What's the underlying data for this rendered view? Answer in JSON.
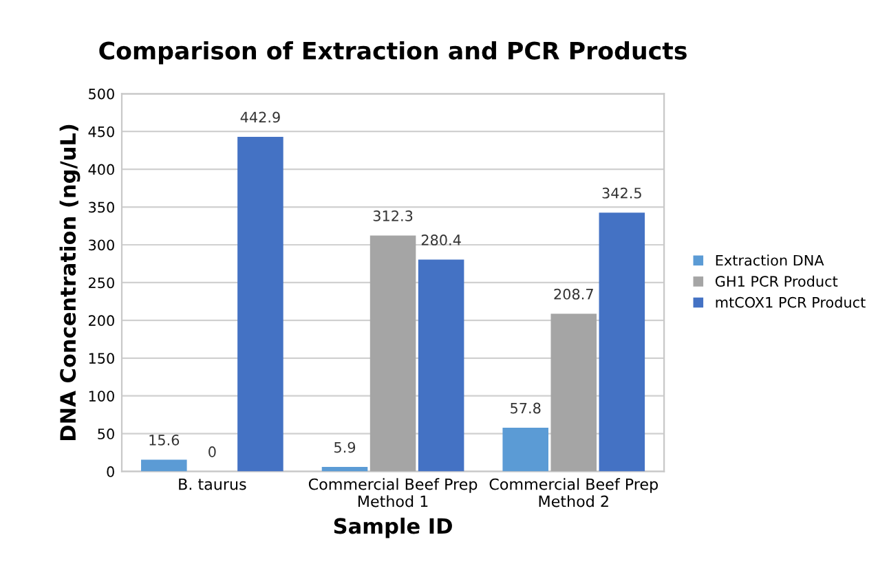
{
  "chart_data": {
    "type": "bar",
    "title": "Comparison of Extraction and PCR Products",
    "xlabel": "Sample ID",
    "ylabel": "DNA Concentration (ng/uL)",
    "categories": [
      "B. taurus",
      "Commercial Beef Prep\nMethod 1",
      "Commercial Beef Prep\nMethod 2"
    ],
    "series": [
      {
        "name": "Extraction DNA",
        "color": "#5b9bd5",
        "values": [
          15.6,
          5.9,
          57.8
        ]
      },
      {
        "name": "GH1 PCR Product",
        "color": "#a5a5a5",
        "values": [
          0,
          312.3,
          208.7
        ]
      },
      {
        "name": "mtCOX1 PCR Product",
        "color": "#4472c4",
        "values": [
          442.9,
          280.4,
          342.5
        ]
      }
    ],
    "ylim": [
      0,
      500
    ],
    "yticks": [
      0,
      50,
      100,
      150,
      200,
      250,
      300,
      350,
      400,
      450,
      500
    ],
    "grid": "y",
    "legend": "right",
    "data_labels": true
  }
}
